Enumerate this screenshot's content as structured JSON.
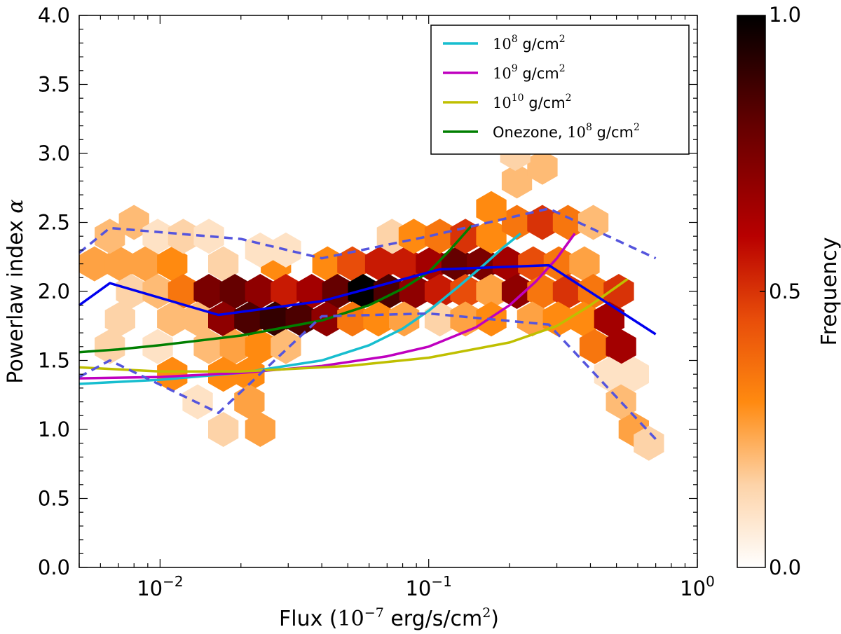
{
  "chart_data": {
    "type": "heatmap",
    "xlabel": {
      "prefix": "Flux (",
      "base": "10",
      "exp": "−7",
      "unit": " erg/s/cm",
      "unit_exp": "2",
      "suffix": ")"
    },
    "ylabel": {
      "text": "Powerlaw index ",
      "symbol": "α"
    },
    "x_scale": "log",
    "xlim": [
      0.005,
      1.0
    ],
    "ylim": [
      0.0,
      4.0
    ],
    "x_ticks": [
      {
        "value": 0.01,
        "base": "10",
        "exp": "−2"
      },
      {
        "value": 0.1,
        "base": "10",
        "exp": "−1"
      },
      {
        "value": 1.0,
        "base": "10",
        "exp": "0"
      }
    ],
    "y_ticks": [
      "0.0",
      "0.5",
      "1.0",
      "1.5",
      "2.0",
      "2.5",
      "3.0",
      "3.5",
      "4.0"
    ],
    "colorbar": {
      "label": "Frequency",
      "range": [
        0.0,
        1.0
      ],
      "ticks": [
        "0.0",
        "0.5",
        "1.0"
      ],
      "colormap": "gist_heat_r"
    },
    "hexbins": [
      [
        0.0057,
        2.2,
        0.25
      ],
      [
        0.0071,
        2.2,
        0.25
      ],
      [
        0.0088,
        2.2,
        0.25
      ],
      [
        0.0111,
        2.2,
        0.3
      ],
      [
        0.0172,
        2.2,
        0.15
      ],
      [
        0.027,
        2.2,
        0.3
      ],
      [
        0.042,
        2.2,
        0.3
      ],
      [
        0.052,
        2.2,
        0.45
      ],
      [
        0.066,
        2.2,
        0.55
      ],
      [
        0.082,
        2.2,
        0.55
      ],
      [
        0.102,
        2.2,
        0.65
      ],
      [
        0.127,
        2.2,
        0.8
      ],
      [
        0.158,
        2.2,
        0.75
      ],
      [
        0.197,
        2.2,
        0.65
      ],
      [
        0.245,
        2.2,
        0.45
      ],
      [
        0.305,
        2.2,
        0.35
      ],
      [
        0.38,
        2.2,
        0.25
      ],
      [
        0.0078,
        2.0,
        0.15
      ],
      [
        0.0098,
        2.0,
        0.2
      ],
      [
        0.0122,
        2.0,
        0.35
      ],
      [
        0.0152,
        2.0,
        0.75
      ],
      [
        0.019,
        2.0,
        0.8
      ],
      [
        0.0236,
        2.0,
        0.7
      ],
      [
        0.0294,
        2.0,
        0.55
      ],
      [
        0.0367,
        2.0,
        0.65
      ],
      [
        0.0457,
        2.0,
        0.8
      ],
      [
        0.057,
        2.0,
        1.0
      ],
      [
        0.071,
        2.0,
        0.85
      ],
      [
        0.0885,
        2.0,
        0.7
      ],
      [
        0.11,
        2.0,
        0.55
      ],
      [
        0.137,
        2.0,
        0.45
      ],
      [
        0.171,
        2.0,
        0.25
      ],
      [
        0.213,
        2.0,
        0.7
      ],
      [
        0.265,
        2.0,
        0.35
      ],
      [
        0.33,
        2.0,
        0.5
      ],
      [
        0.41,
        2.0,
        0.35
      ],
      [
        0.51,
        2.0,
        0.5
      ],
      [
        0.0071,
        1.8,
        0.15
      ],
      [
        0.0111,
        1.8,
        0.2
      ],
      [
        0.0138,
        1.8,
        0.2
      ],
      [
        0.0172,
        1.8,
        0.7
      ],
      [
        0.0215,
        1.8,
        0.85
      ],
      [
        0.0268,
        1.8,
        0.9
      ],
      [
        0.0334,
        1.8,
        0.85
      ],
      [
        0.0417,
        1.8,
        0.7
      ],
      [
        0.052,
        1.8,
        0.35
      ],
      [
        0.065,
        1.8,
        0.3
      ],
      [
        0.081,
        1.8,
        0.25
      ],
      [
        0.243,
        1.8,
        0.25
      ],
      [
        0.303,
        1.8,
        0.3
      ],
      [
        0.377,
        1.8,
        0.3
      ],
      [
        0.47,
        1.8,
        0.65
      ],
      [
        0.0152,
        1.6,
        0.2
      ],
      [
        0.019,
        1.6,
        0.25
      ],
      [
        0.0236,
        1.6,
        0.3
      ],
      [
        0.0294,
        1.6,
        0.2
      ],
      [
        0.415,
        1.6,
        0.35
      ],
      [
        0.52,
        1.6,
        0.65
      ],
      [
        0.0111,
        1.4,
        0.3
      ],
      [
        0.0172,
        1.4,
        0.3
      ],
      [
        0.0215,
        1.4,
        0.3
      ],
      [
        0.47,
        1.4,
        0.1
      ],
      [
        0.58,
        1.4,
        0.1
      ],
      [
        0.0138,
        1.2,
        0.1
      ],
      [
        0.0215,
        1.2,
        0.25
      ],
      [
        0.52,
        1.2,
        0.2
      ],
      [
        0.0172,
        1.0,
        0.15
      ],
      [
        0.0236,
        1.0,
        0.25
      ],
      [
        0.58,
        1.0,
        0.25
      ],
      [
        0.66,
        0.9,
        0.15
      ],
      [
        0.0065,
        2.4,
        0.2
      ],
      [
        0.008,
        2.5,
        0.2
      ],
      [
        0.0098,
        2.4,
        0.1
      ],
      [
        0.0122,
        2.4,
        0.15
      ],
      [
        0.0152,
        2.4,
        0.1
      ],
      [
        0.0236,
        2.3,
        0.1
      ],
      [
        0.0294,
        2.3,
        0.1
      ],
      [
        0.073,
        2.4,
        0.15
      ],
      [
        0.088,
        2.4,
        0.3
      ],
      [
        0.11,
        2.4,
        0.35
      ],
      [
        0.137,
        2.4,
        0.5
      ],
      [
        0.171,
        2.4,
        0.3
      ],
      [
        0.213,
        2.5,
        0.35
      ],
      [
        0.265,
        2.5,
        0.5
      ],
      [
        0.33,
        2.5,
        0.35
      ],
      [
        0.41,
        2.5,
        0.2
      ],
      [
        0.171,
        2.6,
        0.3
      ],
      [
        0.213,
        2.8,
        0.2
      ],
      [
        0.265,
        2.9,
        0.2
      ],
      [
        0.21,
        3.0,
        0.15
      ],
      [
        0.0065,
        1.6,
        0.15
      ],
      [
        0.0098,
        1.6,
        0.1
      ],
      [
        0.11,
        1.8,
        0.15
      ],
      [
        0.137,
        1.8,
        0.25
      ],
      [
        0.171,
        1.8,
        0.3
      ]
    ],
    "series": [
      {
        "name": {
          "base": "10",
          "exp": "8",
          "unit": " g/cm",
          "unit_exp": "2",
          "prefix": ""
        },
        "color": "#17becf",
        "style": "solid",
        "x": [
          0.005,
          0.01,
          0.02,
          0.04,
          0.06,
          0.08,
          0.1,
          0.13,
          0.16,
          0.19,
          0.22
        ],
        "y": [
          1.33,
          1.36,
          1.41,
          1.5,
          1.61,
          1.73,
          1.86,
          2.04,
          2.19,
          2.32,
          2.42
        ]
      },
      {
        "name": {
          "base": "10",
          "exp": "9",
          "unit": " g/cm",
          "unit_exp": "2",
          "prefix": ""
        },
        "color": "#bf00bf",
        "style": "solid",
        "x": [
          0.005,
          0.01,
          0.02,
          0.04,
          0.07,
          0.1,
          0.15,
          0.2,
          0.25,
          0.3,
          0.35
        ],
        "y": [
          1.37,
          1.38,
          1.41,
          1.46,
          1.53,
          1.6,
          1.74,
          1.9,
          2.07,
          2.24,
          2.42
        ]
      },
      {
        "name": {
          "base": "10",
          "exp": "10",
          "unit": " g/cm",
          "unit_exp": "2",
          "prefix": ""
        },
        "color": "#bfbf00",
        "style": "solid",
        "x": [
          0.005,
          0.01,
          0.02,
          0.05,
          0.1,
          0.2,
          0.3,
          0.4,
          0.55
        ],
        "y": [
          1.45,
          1.42,
          1.42,
          1.46,
          1.52,
          1.63,
          1.75,
          1.9,
          2.09
        ]
      },
      {
        "name": {
          "base": "10",
          "exp": "8",
          "unit": " g/cm",
          "unit_exp": "2",
          "prefix": "Onezone, "
        },
        "color": "#007f00",
        "style": "solid",
        "x": [
          0.005,
          0.007,
          0.01,
          0.02,
          0.04,
          0.06,
          0.08,
          0.1,
          0.12,
          0.145
        ],
        "y": [
          1.56,
          1.58,
          1.61,
          1.68,
          1.79,
          1.9,
          2.02,
          2.14,
          2.3,
          2.48
        ]
      },
      {
        "color": "#0000ee",
        "style": "mean",
        "x": [
          0.005,
          0.0065,
          0.0165,
          0.04,
          0.11,
          0.28,
          0.7
        ],
        "y": [
          1.9,
          2.06,
          1.83,
          1.93,
          2.16,
          2.19,
          1.69
        ]
      },
      {
        "color": "#5555dd",
        "style": "upper",
        "x": [
          0.005,
          0.0065,
          0.02,
          0.04,
          0.1,
          0.28,
          0.7
        ],
        "y": [
          2.28,
          2.46,
          2.38,
          2.24,
          2.4,
          2.6,
          2.24
        ]
      },
      {
        "color": "#5555dd",
        "style": "lower",
        "x": [
          0.005,
          0.0065,
          0.0165,
          0.04,
          0.1,
          0.28,
          0.7
        ],
        "y": [
          1.38,
          1.5,
          1.12,
          1.82,
          1.84,
          1.76,
          0.93
        ]
      }
    ]
  }
}
